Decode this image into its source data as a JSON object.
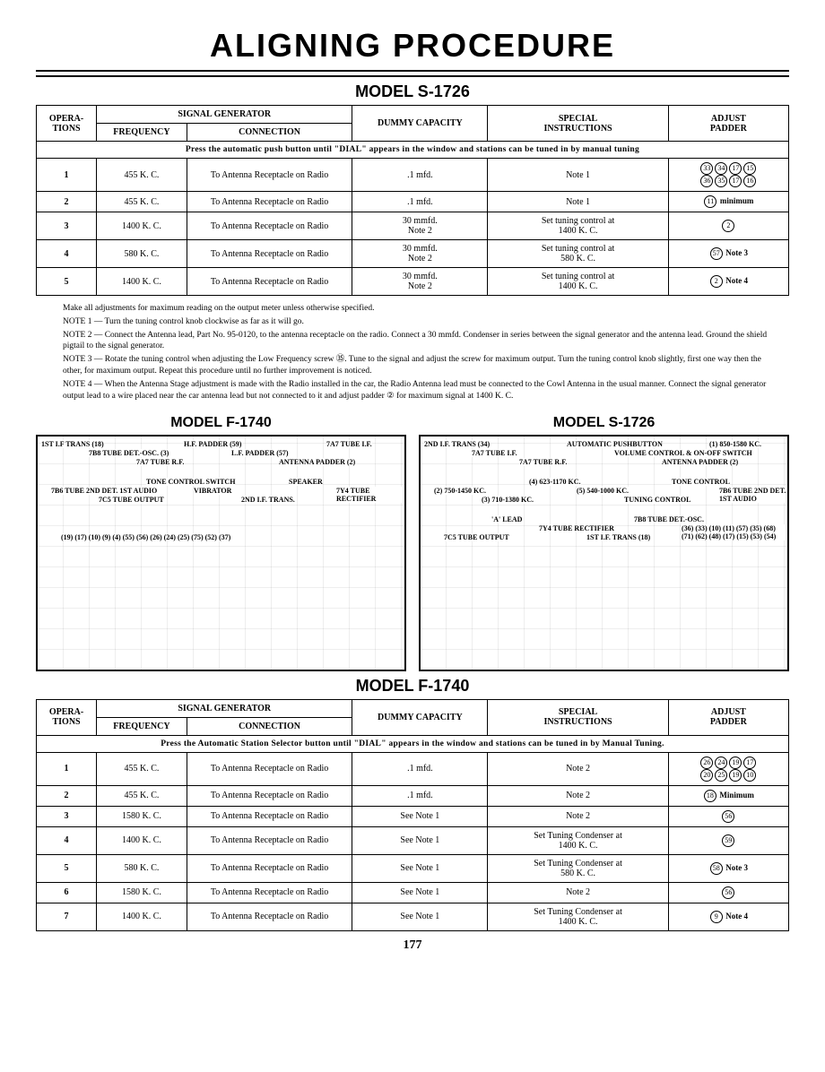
{
  "page": {
    "title": "ALIGNING PROCEDURE",
    "page_number": "177"
  },
  "table_headers": {
    "operations": "OPERA-\nTIONS",
    "signal_generator": "SIGNAL GENERATOR",
    "frequency": "FREQUENCY",
    "connection": "CONNECTION",
    "dummy_capacity": "DUMMY CAPACITY",
    "special_instructions": "SPECIAL\nINSTRUCTIONS",
    "adjust_padder": "ADJUST\nPADDER"
  },
  "model_s1726": {
    "title": "MODEL S-1726",
    "banner": "Press the automatic push button until \"DIAL\" appears in the window and stations can be tuned in by manual tuning",
    "rows": [
      {
        "op": "1",
        "freq": "455 K. C.",
        "conn": "To Antenna Receptacle on Radio",
        "dummy": ".1 mfd.",
        "spec": "Note 1",
        "adj_circles": [
          "33",
          "34",
          "17",
          "15",
          "36",
          "35",
          "17",
          "16"
        ],
        "adj_text": ""
      },
      {
        "op": "2",
        "freq": "455 K. C.",
        "conn": "To Antenna Receptacle on Radio",
        "dummy": ".1 mfd.",
        "spec": "Note 1",
        "adj_circles": [
          "11"
        ],
        "adj_text": "minimum"
      },
      {
        "op": "3",
        "freq": "1400 K. C.",
        "conn": "To Antenna Receptacle on Radio",
        "dummy": "30 mmfd.\nNote 2",
        "spec": "Set tuning control at\n1400 K. C.",
        "adj_circles": [
          "2"
        ],
        "adj_text": ""
      },
      {
        "op": "4",
        "freq": "580 K. C.",
        "conn": "To Antenna Receptacle on Radio",
        "dummy": "30 mmfd.\nNote 2",
        "spec": "Set tuning control at\n580 K. C.",
        "adj_circles": [
          "57"
        ],
        "adj_text": "Note 3"
      },
      {
        "op": "5",
        "freq": "1400 K. C.",
        "conn": "To Antenna Receptacle on Radio",
        "dummy": "30 mmfd.\nNote 2",
        "spec": "Set tuning control at\n1400 K. C.",
        "adj_circles": [
          "2"
        ],
        "adj_text": "Note 4"
      }
    ]
  },
  "notes_s1726": {
    "intro": "Make all adjustments for maximum reading on the output meter unless otherwise specified.",
    "items": [
      {
        "label": "NOTE 1 —",
        "text": "Turn the tuning control knob clockwise as far as it will go."
      },
      {
        "label": "NOTE 2 —",
        "text": "Connect the Antenna lead, Part No. 95-0120, to the antenna receptacle on the radio. Connect a 30 mmfd. Condenser in series between the signal generator and the antenna lead. Ground the shield pigtail to the signal generator."
      },
      {
        "label": "NOTE 3 —",
        "text": "Rotate the tuning control when adjusting the Low Frequency screw ㉟. Tune to the signal and adjust the screw for maximum output. Turn the tuning control knob slightly, first one way then the other, for maximum output. Repeat this procedure until no further improvement is noticed."
      },
      {
        "label": "NOTE 4 —",
        "text": "When the Antenna Stage adjustment is made with the Radio installed in the car, the Radio Antenna lead must be connected to the Cowl Antenna in the usual manner. Connect the signal generator output lead to a wire placed near the car antenna lead but not connected to it and adjust padder ② for maximum signal at 1400 K. C."
      }
    ]
  },
  "diagrams": {
    "left_title": "MODEL F-1740",
    "right_title": "MODEL S-1726",
    "left_labels": [
      "1ST I.F TRANS (18)",
      "7B8 TUBE DET.-OSC. (3)",
      "7A7 TUBE R.F.",
      "H.F. PADDER (59)",
      "L.F. PADDER (57)",
      "ANTENNA PADDER (2)",
      "7A7 TUBE I.F.",
      "7B6 TUBE 2ND DET. 1ST AUDIO",
      "7C5 TUBE OUTPUT",
      "TONE CONTROL SWITCH",
      "VIBRATOR",
      "2ND I.F. TRANS.",
      "SPEAKER",
      "7Y4 TUBE RECTIFIER",
      "(19) (17) (10) (9) (4) (55) (56) (26) (24) (25) (75) (52) (37)"
    ],
    "right_labels": [
      "2ND I.F. TRANS (34)",
      "7A7 TUBE I.F.",
      "7A7 TUBE R.F.",
      "AUTOMATIC PUSHBUTTON",
      "VOLUME CONTROL & ON-OFF SWITCH",
      "ANTENNA PADDER (2)",
      "(1) 850-1580 KC.",
      "(2) 750-1450 KC.",
      "(3) 710-1380 KC.",
      "(4) 623-1170 KC.",
      "(5) 540-1000 KC.",
      "TUNING CONTROL",
      "TONE CONTROL",
      "7B6 TUBE 2ND DET. 1ST AUDIO",
      "7C5 TUBE OUTPUT",
      "'A' LEAD",
      "7Y4 TUBE RECTIFIER",
      "1ST I.F. TRANS (18)",
      "7B8 TUBE DET.-OSC.",
      "(36) (33) (10) (11) (57) (35) (68) (71) (62) (48) (17) (15) (53) (54)"
    ]
  },
  "model_f1740": {
    "title": "MODEL F-1740",
    "banner": "Press the Automatic Station Selector button until \"DIAL\" appears in the window and stations can be tuned in by Manual Tuning.",
    "rows": [
      {
        "op": "1",
        "freq": "455 K. C.",
        "conn": "To Antenna Receptacle on Radio",
        "dummy": ".1 mfd.",
        "spec": "Note 2",
        "adj_circles": [
          "26",
          "24",
          "19",
          "17",
          "20",
          "25",
          "19",
          "10"
        ],
        "adj_text": ""
      },
      {
        "op": "2",
        "freq": "455 K. C.",
        "conn": "To Antenna Receptacle on Radio",
        "dummy": ".1 mfd.",
        "spec": "Note 2",
        "adj_circles": [
          "18"
        ],
        "adj_text": "Minimum"
      },
      {
        "op": "3",
        "freq": "1580 K. C.",
        "conn": "To Antenna Receptacle on Radio",
        "dummy": "See Note 1",
        "spec": "Note 2",
        "adj_circles": [
          "56"
        ],
        "adj_text": ""
      },
      {
        "op": "4",
        "freq": "1400 K. C.",
        "conn": "To Antenna Receptacle on Radio",
        "dummy": "See Note 1",
        "spec": "Set Tuning Condenser at\n1400 K. C.",
        "adj_circles": [
          "59"
        ],
        "adj_text": ""
      },
      {
        "op": "5",
        "freq": "580 K. C.",
        "conn": "To Antenna Receptacle on Radio",
        "dummy": "See Note 1",
        "spec": "Set Tuning Condenser at\n580 K. C.",
        "adj_circles": [
          "58"
        ],
        "adj_text": "Note 3"
      },
      {
        "op": "6",
        "freq": "1580 K. C.",
        "conn": "To Antenna Receptacle on Radio",
        "dummy": "See Note 1",
        "spec": "Note 2",
        "adj_circles": [
          "56"
        ],
        "adj_text": ""
      },
      {
        "op": "7",
        "freq": "1400 K. C.",
        "conn": "To Antenna Receptacle on Radio",
        "dummy": "See Note 1",
        "spec": "Set Tuning Condenser at\n1400 K. C.",
        "adj_circles": [
          "9"
        ],
        "adj_text": "Note 4"
      }
    ]
  }
}
